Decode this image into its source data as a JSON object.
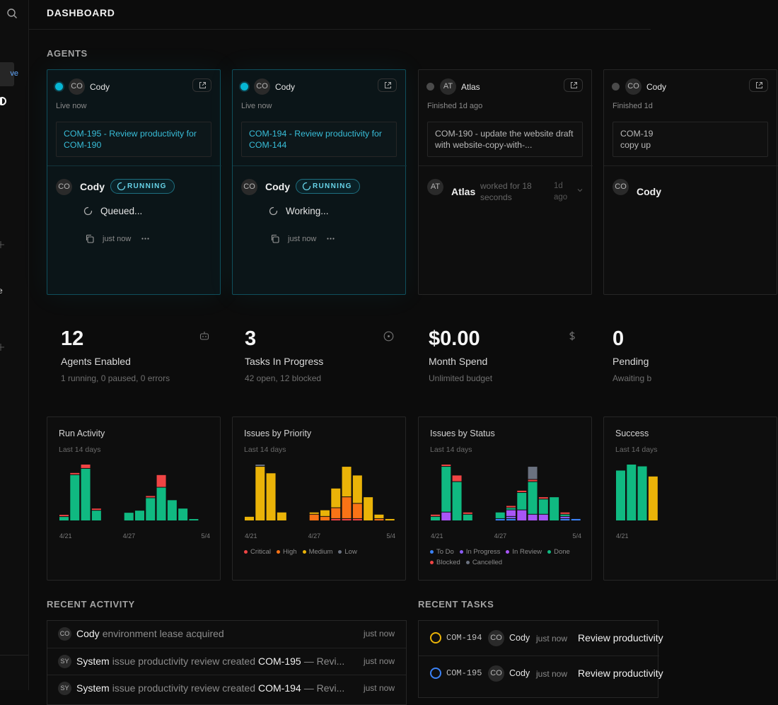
{
  "sidebar": {
    "items": [
      "ve",
      "e"
    ]
  },
  "header": {
    "title": "DASHBOARD"
  },
  "agents": {
    "title": "AGENTS",
    "cards": [
      {
        "status": "live",
        "avatar": "CO",
        "name": "Cody",
        "state": "Live now",
        "task": "COM-195 - Review productivity for COM-190",
        "run": {
          "avatar": "CO",
          "name": "Cody",
          "badge": "RUNNING",
          "message": "Queued...",
          "time": "just now"
        }
      },
      {
        "status": "live",
        "avatar": "CO",
        "name": "Cody",
        "state": "Live now",
        "task": "COM-194 - Review productivity for COM-144",
        "run": {
          "avatar": "CO",
          "name": "Cody",
          "badge": "RUNNING",
          "message": "Working...",
          "time": "just now"
        }
      },
      {
        "status": "finished",
        "avatar": "AT",
        "name": "Atlas",
        "state": "Finished 1d ago",
        "task": "COM-190 - update the website draft with website-copy-with-...",
        "run": {
          "avatar": "AT",
          "name": "Atlas",
          "detail": "worked for 18 seconds",
          "time": "1d ago"
        }
      },
      {
        "status": "finished",
        "avatar": "CO",
        "name": "Cody",
        "state": "Finished 1d",
        "task": "COM-19\ncopy up",
        "run": {
          "avatar": "CO",
          "name": "Cody"
        }
      }
    ]
  },
  "stats": [
    {
      "value": "12",
      "label": "Agents Enabled",
      "detail": "1 running, 0 paused, 0 errors"
    },
    {
      "value": "3",
      "label": "Tasks In Progress",
      "detail": "42 open, 12 blocked"
    },
    {
      "value": "$0.00",
      "label": "Month Spend",
      "detail": "Unlimited budget"
    },
    {
      "value": "0",
      "label": "Pending",
      "detail": "Awaiting b"
    }
  ],
  "charts": [
    {
      "type": "bar",
      "title": "Run Activity",
      "subtitle": "Last 14 days",
      "categories": [
        "4/21",
        null,
        null,
        null,
        null,
        null,
        "4/27",
        null,
        null,
        null,
        null,
        null,
        null,
        "5/4"
      ],
      "series": [
        {
          "color": "#10b981",
          "values": [
            2,
            22,
            25,
            5,
            0,
            0,
            4,
            5,
            11,
            16,
            10,
            6,
            1,
            0
          ]
        },
        {
          "color": "#ef4444",
          "values": [
            1,
            1,
            2,
            1,
            0,
            0,
            0,
            0,
            1,
            6,
            0,
            0,
            0,
            0
          ]
        }
      ]
    },
    {
      "type": "bar",
      "title": "Issues by Priority",
      "subtitle": "Last 14 days",
      "categories": [
        "4/21",
        null,
        null,
        null,
        null,
        null,
        "4/27",
        null,
        null,
        null,
        null,
        null,
        null,
        "5/4"
      ],
      "series": [
        {
          "name": "Critical",
          "color": "#ef4444",
          "values": [
            0,
            0,
            0,
            0,
            0,
            0,
            0,
            0,
            1,
            1,
            1,
            0,
            0,
            0
          ]
        },
        {
          "name": "High",
          "color": "#f97316",
          "values": [
            0,
            0,
            0,
            0,
            0,
            0,
            3,
            2,
            5,
            10,
            7,
            0,
            1,
            0
          ]
        },
        {
          "name": "Medium",
          "color": "#eab308",
          "values": [
            2,
            25,
            22,
            4,
            0,
            0,
            1,
            3,
            9,
            14,
            13,
            11,
            2,
            1
          ]
        },
        {
          "name": "Low",
          "color": "#6b7280",
          "values": [
            0,
            1,
            0,
            0,
            0,
            0,
            0,
            0,
            0,
            0,
            0,
            0,
            0,
            0
          ]
        }
      ]
    },
    {
      "type": "bar",
      "title": "Issues by Status",
      "subtitle": "Last 14 days",
      "categories": [
        "4/21",
        null,
        null,
        null,
        null,
        null,
        "4/27",
        null,
        null,
        null,
        null,
        null,
        null,
        "5/4"
      ],
      "series": [
        {
          "name": "To Do",
          "color": "#3b82f6",
          "values": [
            0,
            0,
            0,
            0,
            0,
            0,
            1,
            1,
            0,
            0,
            0,
            0,
            1,
            1
          ]
        },
        {
          "name": "In Progress",
          "color": "#8b5cf6",
          "values": [
            0,
            0,
            0,
            0,
            0,
            0,
            0,
            1,
            0,
            0,
            0,
            0,
            1,
            0
          ]
        },
        {
          "name": "In Review",
          "color": "#a855f7",
          "values": [
            0,
            4,
            0,
            0,
            0,
            0,
            0,
            3,
            5,
            3,
            3,
            0,
            0,
            0
          ]
        },
        {
          "name": "Done",
          "color": "#10b981",
          "values": [
            2,
            21,
            18,
            3,
            0,
            0,
            3,
            1,
            8,
            15,
            7,
            11,
            1,
            0
          ]
        },
        {
          "name": "Blocked",
          "color": "#ef4444",
          "values": [
            1,
            1,
            3,
            1,
            0,
            0,
            0,
            1,
            1,
            1,
            1,
            0,
            1,
            0
          ]
        },
        {
          "name": "Cancelled",
          "color": "#6b7280",
          "values": [
            0,
            0,
            0,
            0,
            0,
            0,
            0,
            0,
            0,
            6,
            0,
            0,
            0,
            0
          ]
        }
      ]
    },
    {
      "type": "bar",
      "title": "Success",
      "subtitle": "Last 14 days",
      "categories": [
        "4/21",
        null,
        null,
        null
      ],
      "series": [
        {
          "color": "#10b981",
          "values": [
            85,
            95,
            92,
            0
          ]
        },
        {
          "color": "#eab308",
          "values": [
            0,
            0,
            0,
            75
          ]
        }
      ]
    }
  ],
  "recent_activity": {
    "title": "RECENT ACTIVITY",
    "rows": [
      {
        "avatar": "CO",
        "actor": "Cody",
        "text": "environment lease acquired",
        "time": "just now"
      },
      {
        "avatar": "SY",
        "actor": "System",
        "text": "issue productivity review created",
        "issue": "COM-195",
        "rest": "— Revi...",
        "time": "just now"
      },
      {
        "avatar": "SY",
        "actor": "System",
        "text": "issue productivity review created",
        "issue": "COM-194",
        "rest": "— Revi...",
        "time": "just now"
      }
    ]
  },
  "recent_tasks": {
    "title": "RECENT TASKS",
    "rows": [
      {
        "status_color": "#eab308",
        "id": "COM-194",
        "avatar": "CO",
        "assignee": "Cody",
        "time": "just now",
        "title": "Review productivity"
      },
      {
        "status_color": "#3b82f6",
        "id": "COM-195",
        "avatar": "CO",
        "assignee": "Cody",
        "time": "just now",
        "title": "Review productivity"
      }
    ]
  }
}
